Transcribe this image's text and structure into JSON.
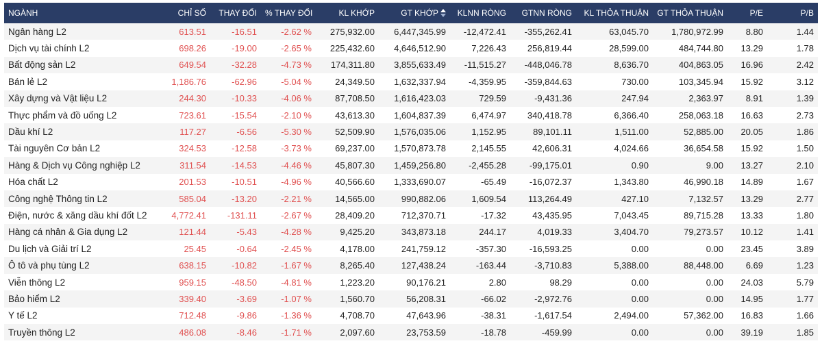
{
  "headers": [
    "NGÀNH",
    "CHỈ SỐ",
    "THAY ĐỔI",
    "% THAY ĐỔI",
    "KL KHỚP",
    "GT KHỚP",
    "KLNN RÒNG",
    "GTNN RÒNG",
    "KL THỎA THUẬN",
    "GT THỎA THUẬN",
    "P/E",
    "P/B"
  ],
  "sort_icon": "sort-updown-icon",
  "colors": {
    "header_bg": "#2a3d66",
    "negative": "#e05050",
    "stripe": "#f4f4f4"
  },
  "rows": [
    [
      "Ngân hàng L2",
      "613.51",
      "-16.51",
      "-2.62 %",
      "275,932.00",
      "6,447,345.99",
      "-12,472.41",
      "-355,262.41",
      "63,045.70",
      "1,780,972.99",
      "8.80",
      "1.44"
    ],
    [
      "Dịch vụ tài chính L2",
      "698.26",
      "-19.00",
      "-2.65 %",
      "225,432.60",
      "4,646,512.90",
      "7,226.43",
      "256,819.44",
      "28,599.00",
      "484,744.80",
      "13.29",
      "1.78"
    ],
    [
      "Bất động sản L2",
      "649.54",
      "-32.28",
      "-4.73 %",
      "174,311.80",
      "3,855,633.49",
      "-11,515.27",
      "-448,046.78",
      "8,636.70",
      "404,863.05",
      "16.96",
      "2.42"
    ],
    [
      "Bán lẻ L2",
      "1,186.76",
      "-62.96",
      "-5.04 %",
      "24,349.50",
      "1,632,337.94",
      "-4,359.95",
      "-359,844.63",
      "730.00",
      "103,345.94",
      "15.92",
      "3.12"
    ],
    [
      "Xây dựng và Vật liệu L2",
      "244.30",
      "-10.33",
      "-4.06 %",
      "87,708.50",
      "1,616,423.03",
      "729.59",
      "-9,431.36",
      "247.94",
      "2,363.97",
      "8.91",
      "1.39"
    ],
    [
      "Thực phẩm và đồ uống L2",
      "723.61",
      "-15.54",
      "-2.10 %",
      "43,613.30",
      "1,604,837.39",
      "6,474.97",
      "340,418.78",
      "6,366.40",
      "258,063.18",
      "16.63",
      "2.73"
    ],
    [
      "Dầu khí L2",
      "117.27",
      "-6.56",
      "-5.30 %",
      "52,509.90",
      "1,576,035.06",
      "1,152.95",
      "89,101.11",
      "1,511.00",
      "52,885.00",
      "20.05",
      "1.86"
    ],
    [
      "Tài nguyên Cơ bản L2",
      "324.53",
      "-12.58",
      "-3.73 %",
      "69,237.00",
      "1,570,873.78",
      "2,145.55",
      "42,606.31",
      "4,024.66",
      "36,654.58",
      "15.92",
      "1.50"
    ],
    [
      "Hàng & Dịch vụ Công nghiệp L2",
      "311.54",
      "-14.53",
      "-4.46 %",
      "45,807.30",
      "1,459,256.80",
      "-2,455.28",
      "-99,175.01",
      "0.90",
      "9.00",
      "13.27",
      "2.10"
    ],
    [
      "Hóa chất L2",
      "201.53",
      "-10.51",
      "-4.96 %",
      "40,566.60",
      "1,333,690.07",
      "-65.49",
      "-16,072.37",
      "1,343.80",
      "46,990.18",
      "14.89",
      "1.67"
    ],
    [
      "Công nghệ Thông tin L2",
      "585.04",
      "-13.20",
      "-2.21 %",
      "14,565.00",
      "990,882.06",
      "1,609.54",
      "113,264.49",
      "427.10",
      "7,132.57",
      "13.29",
      "2.77"
    ],
    [
      "Điện, nước & xăng dầu khí đốt L2",
      "4,772.41",
      "-131.11",
      "-2.67 %",
      "28,409.20",
      "712,370.71",
      "-17.32",
      "43,435.95",
      "7,043.45",
      "89,715.28",
      "13.33",
      "1.80"
    ],
    [
      "Hàng cá nhân & Gia dụng L2",
      "121.44",
      "-5.43",
      "-4.28 %",
      "9,425.20",
      "343,873.18",
      "244.17",
      "4,019.33",
      "3,404.70",
      "79,273.57",
      "10.12",
      "1.41"
    ],
    [
      "Du lịch và Giải trí L2",
      "25.45",
      "-0.64",
      "-2.45 %",
      "4,178.00",
      "241,759.12",
      "-357.30",
      "-16,593.25",
      "0.00",
      "0.00",
      "23.45",
      "3.89"
    ],
    [
      "Ô tô và phụ tùng L2",
      "638.15",
      "-10.82",
      "-1.67 %",
      "8,265.40",
      "127,438.24",
      "-163.44",
      "-3,710.83",
      "5,388.00",
      "88,448.00",
      "6.69",
      "1.23"
    ],
    [
      "Viễn thông L2",
      "959.15",
      "-48.50",
      "-4.81 %",
      "1,223.20",
      "90,176.21",
      "2.80",
      "98.29",
      "0.00",
      "0.00",
      "24.03",
      "5.79"
    ],
    [
      "Bảo hiểm L2",
      "339.40",
      "-3.69",
      "-1.07 %",
      "1,560.70",
      "56,208.31",
      "-66.02",
      "-2,972.76",
      "0.00",
      "0.00",
      "14.95",
      "1.77"
    ],
    [
      "Y tế L2",
      "712.48",
      "-9.86",
      "-1.36 %",
      "4,708.70",
      "47,643.96",
      "-38.31",
      "-1,617.54",
      "2,494.00",
      "57,362.00",
      "16.83",
      "1.66"
    ],
    [
      "Truyền thông L2",
      "486.08",
      "-8.46",
      "-1.71 %",
      "2,097.60",
      "23,753.59",
      "-18.78",
      "-459.99",
      "0.00",
      "0.00",
      "39.19",
      "1.85"
    ]
  ]
}
